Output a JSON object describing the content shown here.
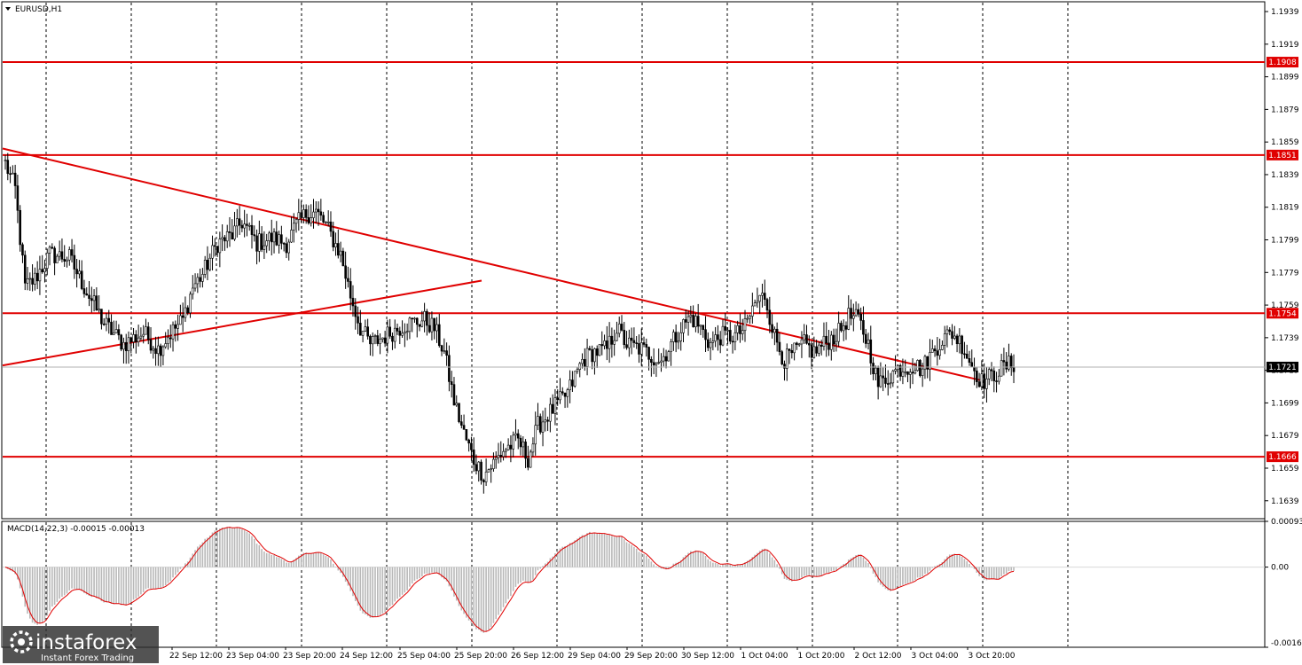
{
  "symbol_label": "EURUSD,H1",
  "macd_label": "MACD(14,22,3) -0.00015 -0.00013",
  "brand": {
    "name": "instaforex",
    "tagline": "Instant Forex Trading"
  },
  "colors": {
    "level": "#e00000",
    "trend": "#e00000",
    "macd_line": "#e00000",
    "histogram": "#b8b8b8",
    "current_price_bg": "#000000",
    "grid": "#000000"
  },
  "chart_data": [
    {
      "type": "candlestick",
      "title": "",
      "ylim": [
        1.1628,
        1.1945
      ],
      "y_ticks": [
        "1.1939",
        "1.1919",
        "1.1899",
        "1.1879",
        "1.1859",
        "1.1839",
        "1.1819",
        "1.1799",
        "1.1779",
        "1.1759",
        "1.1739",
        "1.1719",
        "1.1699",
        "1.1679",
        "1.1659",
        "1.1639"
      ],
      "x_labels": [
        "22 Sep 12:00",
        "23 Sep 04:00",
        "23 Sep 20:00",
        "24 Sep 12:00",
        "25 Sep 04:00",
        "25 Sep 20:00",
        "26 Sep 12:00",
        "29 Sep 04:00",
        "29 Sep 20:00",
        "30 Sep 12:00",
        "1 Oct 04:00",
        "1 Oct 20:00",
        "2 Oct 12:00",
        "3 Oct 04:00",
        "3 Oct 20:00"
      ],
      "horizontal_levels": [
        {
          "value": 1.1908,
          "label": "1.1908"
        },
        {
          "value": 1.1851,
          "label": "1.1851"
        },
        {
          "value": 1.1754,
          "label": "1.1754"
        },
        {
          "value": 1.1666,
          "label": "1.1666"
        }
      ],
      "current_price": {
        "value": 1.1721,
        "label": "1.1721"
      },
      "trend_lines": [
        {
          "start": 1.1855,
          "end": 1.1713
        },
        {
          "start": 1.1722,
          "end": 1.1774
        }
      ],
      "path": [
        [
          0,
          1.1846
        ],
        [
          4,
          1.183
        ],
        [
          8,
          1.177
        ],
        [
          12,
          1.1775
        ],
        [
          18,
          1.179
        ],
        [
          26,
          1.1788
        ],
        [
          32,
          1.177
        ],
        [
          40,
          1.1748
        ],
        [
          48,
          1.1735
        ],
        [
          56,
          1.1742
        ],
        [
          62,
          1.1732
        ],
        [
          66,
          1.174
        ],
        [
          72,
          1.175
        ],
        [
          76,
          1.177
        ],
        [
          80,
          1.1778
        ],
        [
          86,
          1.1797
        ],
        [
          92,
          1.1802
        ],
        [
          96,
          1.181
        ],
        [
          102,
          1.1797
        ],
        [
          108,
          1.18
        ],
        [
          114,
          1.1797
        ],
        [
          118,
          1.1808
        ],
        [
          122,
          1.1815
        ],
        [
          126,
          1.1816
        ],
        [
          130,
          1.1808
        ],
        [
          136,
          1.179
        ],
        [
          140,
          1.1765
        ],
        [
          144,
          1.1745
        ],
        [
          148,
          1.1735
        ],
        [
          154,
          1.174
        ],
        [
          162,
          1.1747
        ],
        [
          170,
          1.175
        ],
        [
          174,
          1.1745
        ],
        [
          178,
          1.173
        ],
        [
          182,
          1.17
        ],
        [
          186,
          1.168
        ],
        [
          190,
          1.1664
        ],
        [
          194,
          1.1655
        ],
        [
          198,
          1.1662
        ],
        [
          202,
          1.167
        ],
        [
          208,
          1.1676
        ],
        [
          212,
          1.1665
        ],
        [
          216,
          1.1685
        ],
        [
          222,
          1.1695
        ],
        [
          228,
          1.1705
        ],
        [
          234,
          1.1725
        ],
        [
          238,
          1.173
        ],
        [
          244,
          1.1732
        ],
        [
          248,
          1.1745
        ],
        [
          252,
          1.1735
        ],
        [
          258,
          1.1732
        ],
        [
          262,
          1.1728
        ],
        [
          266,
          1.1725
        ],
        [
          270,
          1.1735
        ],
        [
          274,
          1.1745
        ],
        [
          278,
          1.1752
        ],
        [
          282,
          1.1745
        ],
        [
          286,
          1.1735
        ],
        [
          290,
          1.174
        ],
        [
          296,
          1.174
        ],
        [
          300,
          1.1745
        ],
        [
          304,
          1.176
        ],
        [
          308,
          1.1765
        ],
        [
          312,
          1.174
        ],
        [
          316,
          1.1725
        ],
        [
          320,
          1.173
        ],
        [
          324,
          1.1735
        ],
        [
          328,
          1.173
        ],
        [
          332,
          1.1735
        ],
        [
          338,
          1.1742
        ],
        [
          342,
          1.1752
        ],
        [
          346,
          1.175
        ],
        [
          350,
          1.1735
        ],
        [
          354,
          1.171
        ],
        [
          358,
          1.1715
        ],
        [
          362,
          1.172
        ],
        [
          368,
          1.1722
        ],
        [
          372,
          1.172
        ],
        [
          376,
          1.173
        ],
        [
          380,
          1.1738
        ],
        [
          384,
          1.1742
        ],
        [
          388,
          1.1735
        ],
        [
          392,
          1.1722
        ],
        [
          396,
          1.1712
        ],
        [
          400,
          1.1715
        ],
        [
          404,
          1.172
        ],
        [
          408,
          1.1723
        ]
      ]
    },
    {
      "type": "bar",
      "title": "MACD(14,22,3)",
      "ylim": [
        -0.00163,
        0.00093
      ],
      "y_ticks": [
        "0.00093",
        "0.00",
        "-0.00163"
      ],
      "values": [
        -0.00015
      ],
      "signal": [
        -0.00013
      ]
    }
  ]
}
